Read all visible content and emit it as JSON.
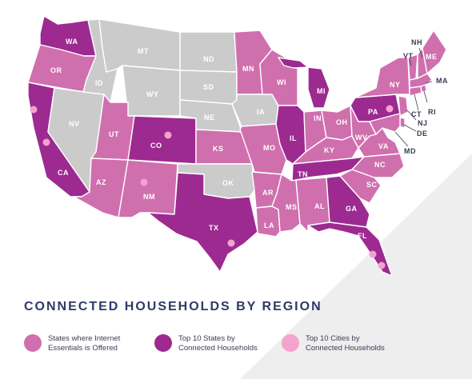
{
  "title": "CONNECTED HOUSEHOLDS BY REGION",
  "colors": {
    "offered": "#d06fae",
    "top10_states": "#9c2a90",
    "top10_cities": "#f3a3cd",
    "not_offered": "#cbcbcb",
    "background_band": "#eeeeee"
  },
  "legend": [
    {
      "label_line1": "States where Internet",
      "label_line2": "Essentials is Offered",
      "color": "#d06fae"
    },
    {
      "label_line1": "Top 10 States by",
      "label_line2": "Connected Households",
      "color": "#9c2a90"
    },
    {
      "label_line1": "Top 10 Cities by",
      "label_line2": "Connected Households",
      "color": "#f3a3cd"
    }
  ],
  "states": {
    "WA": {
      "category": "top10_states"
    },
    "OR": {
      "category": "offered"
    },
    "CA": {
      "category": "top10_states"
    },
    "NV": {
      "category": "not_offered"
    },
    "ID": {
      "category": "not_offered"
    },
    "MT": {
      "category": "not_offered"
    },
    "WY": {
      "category": "not_offered"
    },
    "UT": {
      "category": "offered"
    },
    "CO": {
      "category": "top10_states"
    },
    "AZ": {
      "category": "offered"
    },
    "NM": {
      "category": "offered"
    },
    "ND": {
      "category": "not_offered"
    },
    "SD": {
      "category": "not_offered"
    },
    "NE": {
      "category": "not_offered"
    },
    "KS": {
      "category": "offered"
    },
    "OK": {
      "category": "not_offered"
    },
    "TX": {
      "category": "top10_states"
    },
    "MN": {
      "category": "offered"
    },
    "IA": {
      "category": "not_offered"
    },
    "MO": {
      "category": "offered"
    },
    "AR": {
      "category": "offered"
    },
    "LA": {
      "category": "offered"
    },
    "WI": {
      "category": "offered"
    },
    "IL": {
      "category": "top10_states"
    },
    "MI": {
      "category": "top10_states"
    },
    "IN": {
      "category": "offered"
    },
    "OH": {
      "category": "offered"
    },
    "KY": {
      "category": "offered"
    },
    "TN": {
      "category": "top10_states"
    },
    "MS": {
      "category": "offered"
    },
    "AL": {
      "category": "offered"
    },
    "GA": {
      "category": "top10_states"
    },
    "FL": {
      "category": "top10_states"
    },
    "SC": {
      "category": "offered"
    },
    "NC": {
      "category": "offered"
    },
    "VA": {
      "category": "offered"
    },
    "WV": {
      "category": "offered"
    },
    "PA": {
      "category": "top10_states"
    },
    "NY": {
      "category": "offered"
    },
    "VT": {
      "category": "offered"
    },
    "NH": {
      "category": "offered"
    },
    "ME": {
      "category": "offered"
    },
    "MA": {
      "category": "offered"
    },
    "RI": {
      "category": "offered"
    },
    "CT": {
      "category": "offered"
    },
    "NJ": {
      "category": "offered"
    },
    "DE": {
      "category": "offered"
    },
    "MD": {
      "category": "offered"
    }
  }
}
